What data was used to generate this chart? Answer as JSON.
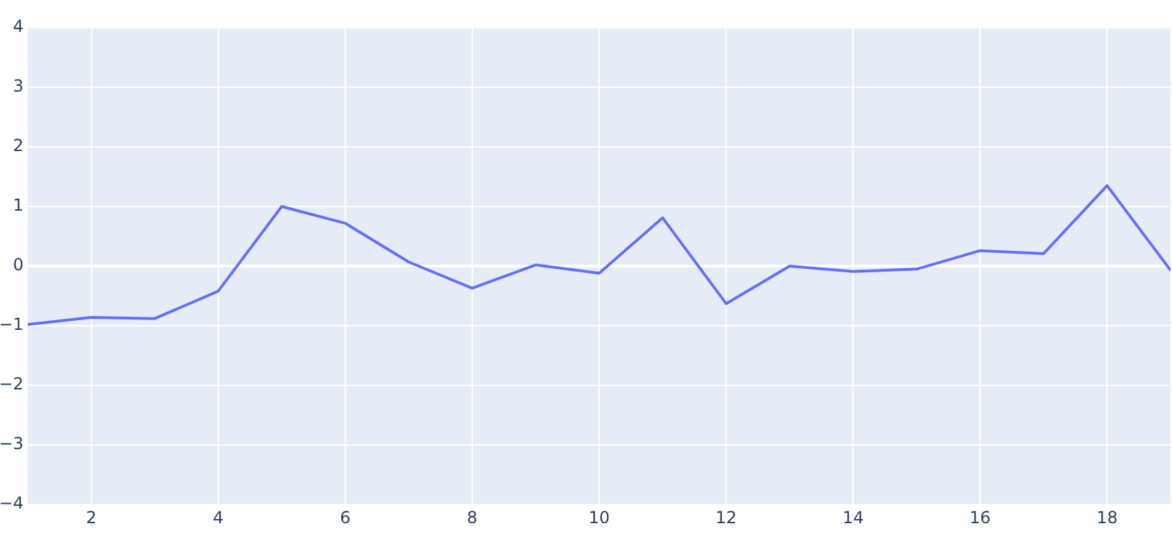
{
  "chart_data": {
    "type": "line",
    "x": [
      1,
      2,
      3,
      4,
      5,
      6,
      7,
      8,
      9,
      10,
      11,
      12,
      13,
      14,
      15,
      16,
      17,
      18,
      19
    ],
    "series": [
      {
        "color": "#636efa",
        "values": [
          -0.98,
          -0.86,
          -0.88,
          -0.42,
          1.0,
          0.72,
          0.07,
          -0.37,
          0.02,
          -0.12,
          0.81,
          -0.63,
          0,
          -0.09,
          -0.05,
          0.26,
          0.21,
          1.35,
          -0.07
        ]
      }
    ],
    "xlim": [
      1,
      19
    ],
    "xticks": [
      2,
      4,
      6,
      8,
      10,
      12,
      14,
      16,
      18
    ],
    "ylim": [
      -4,
      4
    ],
    "yticks": [
      {
        "value": -4,
        "label": "−4"
      },
      {
        "value": -3,
        "label": "−3"
      },
      {
        "value": -2,
        "label": "−2"
      },
      {
        "value": -1,
        "label": "−1"
      },
      0,
      1,
      2,
      3,
      4
    ],
    "grid": true,
    "legend": false,
    "marker": "none",
    "line_style": "solid"
  }
}
